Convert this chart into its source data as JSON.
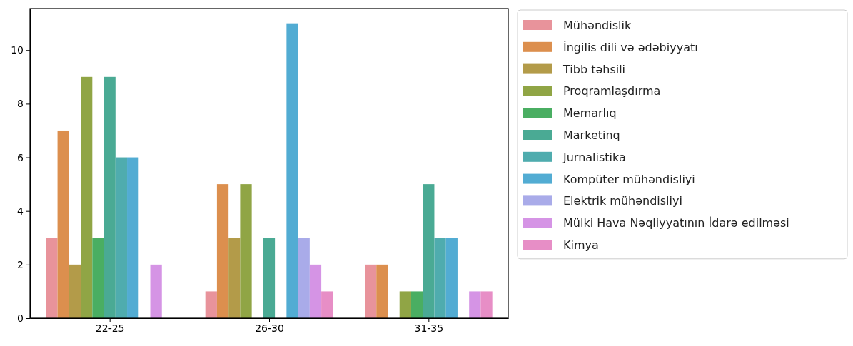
{
  "chart_data": {
    "type": "bar",
    "categories": [
      "22-25",
      "26-30",
      "31-35"
    ],
    "ylim": [
      0,
      11.55
    ],
    "yticks": [
      0,
      2,
      4,
      6,
      8,
      10
    ],
    "grid": false,
    "legend": "right",
    "series": [
      {
        "name": "Mühəndislik",
        "color": "#e8939b",
        "values": [
          3,
          1,
          2
        ]
      },
      {
        "name": "İngilis dili və ədəbiyyatı",
        "color": "#dc8f4e",
        "values": [
          7,
          5,
          2
        ]
      },
      {
        "name": "Tibb təhsili",
        "color": "#b39b49",
        "values": [
          2,
          3,
          null
        ]
      },
      {
        "name": "Proqramlaşdırma",
        "color": "#90a545",
        "values": [
          9,
          5,
          1
        ]
      },
      {
        "name": "Memarlıq",
        "color": "#4aae62",
        "values": [
          3,
          null,
          1
        ]
      },
      {
        "name": "Marketinq",
        "color": "#4aaa94",
        "values": [
          9,
          3,
          5
        ]
      },
      {
        "name": "Jurnalistika",
        "color": "#4facae",
        "values": [
          6,
          null,
          3
        ]
      },
      {
        "name": "Kompüter mühəndisliyi",
        "color": "#52acd3",
        "values": [
          6,
          11,
          3
        ]
      },
      {
        "name": "Elektrik mühəndisliyi",
        "color": "#a9abe9",
        "values": [
          null,
          3,
          null
        ]
      },
      {
        "name": "Mülki Hava Nəqliyyatının İdarə edilməsi",
        "color": "#d594e5",
        "values": [
          2,
          2,
          1
        ]
      },
      {
        "name": "Kimya",
        "color": "#e78ec6",
        "values": [
          null,
          1,
          1
        ]
      }
    ]
  }
}
